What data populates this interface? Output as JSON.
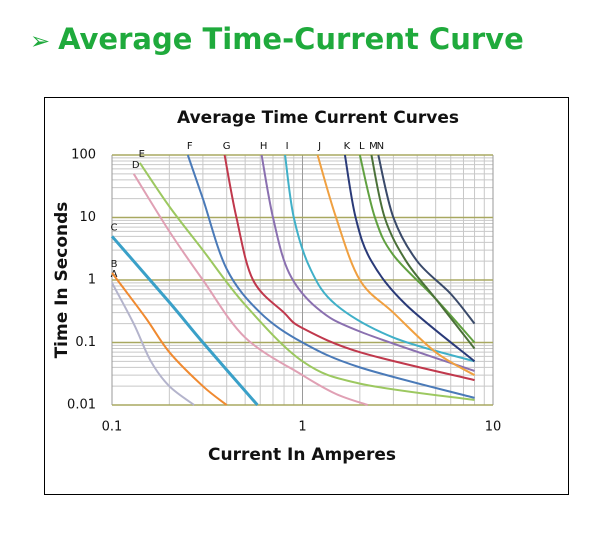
{
  "heading": "Average Time-Current Curve",
  "chart_data": {
    "type": "line",
    "title": "Average Time Current Curves",
    "xlabel": "Current In Amperes",
    "ylabel": "Time In Seconds",
    "xscale": "log",
    "yscale": "log",
    "grid": true,
    "xlim": [
      0.1,
      10
    ],
    "xticks": [
      0.1,
      1,
      10
    ],
    "ylim": [
      0.01,
      100
    ],
    "yticks": [
      0.01,
      0.1,
      1,
      10,
      100
    ],
    "series": [
      {
        "name": "A",
        "color": "#b4b4cc",
        "x": [
          0.1,
          0.13,
          0.16,
          0.2,
          0.27
        ],
        "values": [
          0.9,
          0.2,
          0.05,
          0.02,
          0.01
        ]
      },
      {
        "name": "B",
        "color": "#f08a30",
        "x": [
          0.1,
          0.15,
          0.2,
          0.3,
          0.4
        ],
        "values": [
          1.3,
          0.25,
          0.07,
          0.02,
          0.01
        ]
      },
      {
        "name": "C",
        "color": "#3aa0c8",
        "x": [
          0.1,
          0.2,
          0.3,
          0.58
        ],
        "values": [
          5,
          0.44,
          0.1,
          0.01
        ]
      },
      {
        "name": "D",
        "color": "#e0a0b4",
        "x": [
          0.13,
          0.2,
          0.3,
          0.5,
          1,
          1.5,
          2.2
        ],
        "values": [
          50,
          6,
          1,
          0.12,
          0.03,
          0.015,
          0.01
        ]
      },
      {
        "name": "E",
        "color": "#9cc860",
        "x": [
          0.14,
          0.2,
          0.3,
          0.5,
          1,
          2,
          8
        ],
        "values": [
          75,
          15,
          3,
          0.4,
          0.05,
          0.022,
          0.012
        ]
      },
      {
        "name": "F",
        "color": "#4a7ab8",
        "x": [
          0.25,
          0.3,
          0.4,
          0.6,
          1,
          2,
          8
        ],
        "values": [
          100,
          20,
          1.5,
          0.3,
          0.1,
          0.04,
          0.013
        ]
      },
      {
        "name": "G",
        "color": "#c0384c",
        "x": [
          0.39,
          0.45,
          0.55,
          0.8,
          1,
          2,
          8
        ],
        "values": [
          100,
          10,
          1,
          0.3,
          0.17,
          0.07,
          0.025
        ]
      },
      {
        "name": "H",
        "color": "#8a70b0",
        "x": [
          0.61,
          0.7,
          0.85,
          1.2,
          2,
          8
        ],
        "values": [
          100,
          10,
          1.3,
          0.35,
          0.15,
          0.035
        ]
      },
      {
        "name": "I",
        "color": "#40b0c8",
        "x": [
          0.81,
          0.9,
          1.1,
          1.5,
          3,
          8
        ],
        "values": [
          100,
          10,
          1.5,
          0.4,
          0.12,
          0.05
        ]
      },
      {
        "name": "J",
        "color": "#f0a040",
        "x": [
          1.2,
          1.5,
          2,
          3,
          5,
          8
        ],
        "values": [
          100,
          10,
          1,
          0.3,
          0.07,
          0.03
        ]
      },
      {
        "name": "K",
        "color": "#2a3a78",
        "x": [
          1.67,
          1.9,
          2.3,
          3.5,
          8
        ],
        "values": [
          100,
          10,
          2,
          0.4,
          0.05
        ]
      },
      {
        "name": "L",
        "color": "#60a040",
        "x": [
          2,
          2.4,
          3,
          5,
          8
        ],
        "values": [
          100,
          10,
          2.5,
          0.5,
          0.1
        ]
      },
      {
        "name": "M",
        "color": "#4a7038",
        "x": [
          2.3,
          2.7,
          3.5,
          5,
          8
        ],
        "values": [
          100,
          10,
          2,
          0.5,
          0.08
        ]
      },
      {
        "name": "N",
        "color": "#3a4a6a",
        "x": [
          2.5,
          3,
          4,
          6,
          8
        ],
        "values": [
          100,
          10,
          2,
          0.6,
          0.2
        ]
      }
    ]
  }
}
